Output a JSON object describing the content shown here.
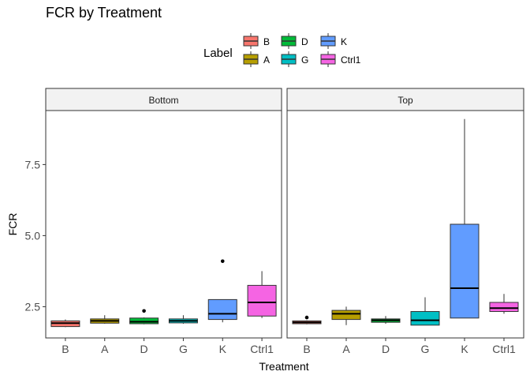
{
  "chart_data": {
    "type": "boxplot",
    "title": "FCR by Treatment",
    "xlabel": "Treatment",
    "ylabel": "FCR",
    "ylim": [
      1.4,
      9.4
    ],
    "yticks": [
      2.5,
      5.0,
      7.5
    ],
    "ytick_labels": [
      "2.5",
      "5.0",
      "7.5"
    ],
    "categories": [
      "B",
      "A",
      "D",
      "G",
      "K",
      "Ctrl1"
    ],
    "legend": {
      "title": "Label",
      "placement": "top",
      "entries": [
        {
          "label": "B",
          "color": "#F8766D"
        },
        {
          "label": "A",
          "color": "#B79F00"
        },
        {
          "label": "D",
          "color": "#00BA38"
        },
        {
          "label": "G",
          "color": "#00BFC4"
        },
        {
          "label": "K",
          "color": "#619CFF"
        },
        {
          "label": "Ctrl1",
          "color": "#F564E3"
        }
      ]
    },
    "facets": [
      {
        "name": "Bottom",
        "boxes": [
          {
            "category": "B",
            "whisker_low": 1.78,
            "q1": 1.8,
            "median": 1.92,
            "q3": 2.0,
            "whisker_high": 2.05,
            "outliers": []
          },
          {
            "category": "A",
            "whisker_low": 1.9,
            "q1": 1.92,
            "median": 2.0,
            "q3": 2.07,
            "whisker_high": 2.2,
            "outliers": []
          },
          {
            "category": "D",
            "whisker_low": 1.88,
            "q1": 1.9,
            "median": 1.97,
            "q3": 2.1,
            "whisker_high": 2.12,
            "outliers": [
              2.35
            ]
          },
          {
            "category": "G",
            "whisker_low": 1.9,
            "q1": 1.93,
            "median": 2.0,
            "q3": 2.07,
            "whisker_high": 2.2,
            "outliers": []
          },
          {
            "category": "K",
            "whisker_low": 1.95,
            "q1": 2.05,
            "median": 2.25,
            "q3": 2.75,
            "whisker_high": 2.75,
            "outliers": [
              4.1
            ]
          },
          {
            "category": "Ctrl1",
            "whisker_low": 2.1,
            "q1": 2.17,
            "median": 2.65,
            "q3": 3.25,
            "whisker_high": 3.75,
            "outliers": []
          }
        ]
      },
      {
        "name": "Top",
        "boxes": [
          {
            "category": "B",
            "whisker_low": 1.88,
            "q1": 1.9,
            "median": 1.95,
            "q3": 2.0,
            "whisker_high": 2.02,
            "outliers": [
              2.12
            ]
          },
          {
            "category": "A",
            "whisker_low": 1.85,
            "q1": 2.05,
            "median": 2.25,
            "q3": 2.37,
            "whisker_high": 2.5,
            "outliers": []
          },
          {
            "category": "D",
            "whisker_low": 1.9,
            "q1": 1.95,
            "median": 2.02,
            "q3": 2.07,
            "whisker_high": 2.17,
            "outliers": []
          },
          {
            "category": "G",
            "whisker_low": 1.85,
            "q1": 1.85,
            "median": 2.02,
            "q3": 2.33,
            "whisker_high": 2.83,
            "outliers": []
          },
          {
            "category": "K",
            "whisker_low": 2.1,
            "q1": 2.1,
            "median": 3.15,
            "q3": 5.4,
            "whisker_high": 9.1,
            "outliers": []
          },
          {
            "category": "Ctrl1",
            "whisker_low": 2.25,
            "q1": 2.33,
            "median": 2.45,
            "q3": 2.65,
            "whisker_high": 2.95,
            "outliers": []
          }
        ]
      }
    ]
  }
}
